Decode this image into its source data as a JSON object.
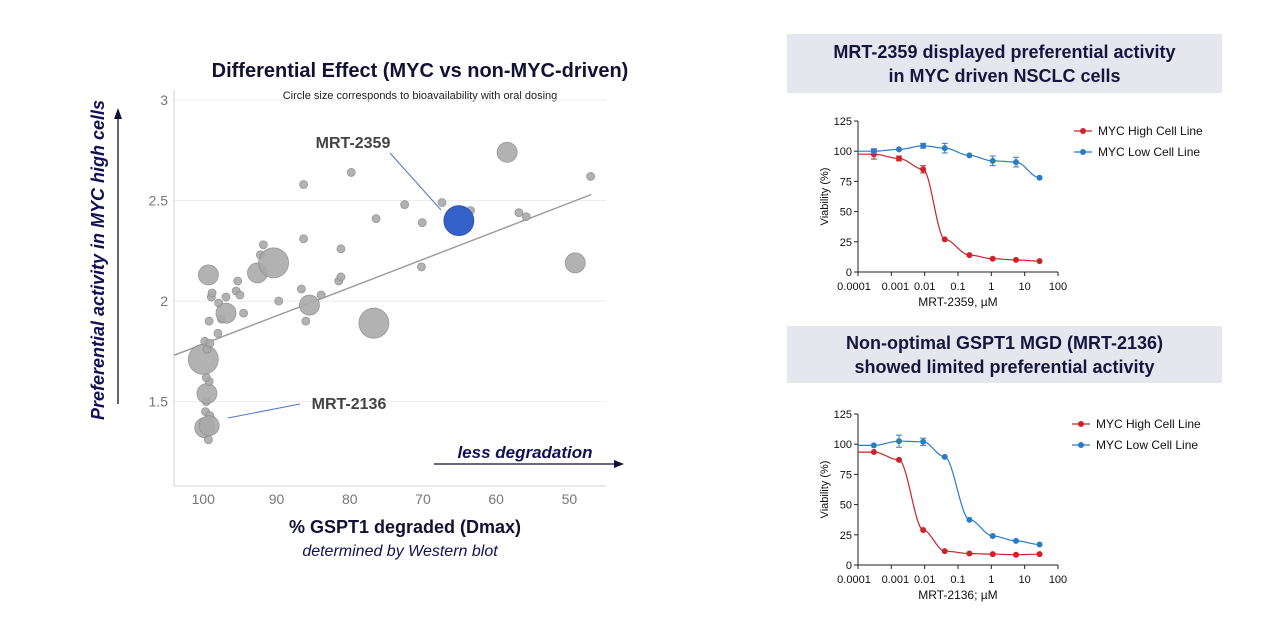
{
  "main_chart": {
    "title": "Differential Effect (MYC vs non-MYC-driven)",
    "subtitle": "Circle size corresponds to bioavailability with oral dosing",
    "ylabel": "Preferential activity in MYC high cells",
    "xlabel": "% GSPT1 degraded (Dmax)",
    "xlabel_sub": "determined by Western blot",
    "arrow_label": "less degradation",
    "callout_1": "MRT-2359",
    "callout_2": "MRT-2136",
    "colors": {
      "bubble": "#aaaaaa",
      "highlight": "#3461c8",
      "trend": "#999999"
    }
  },
  "box_1": {
    "line1": "MRT-2359 displayed preferential activity",
    "line2": "in MYC driven NSCLC cells"
  },
  "box_2": {
    "line1": "Non-optimal GSPT1 MGD (MRT-2136)",
    "line2": "showed limited preferential activity"
  },
  "chart_data": [
    {
      "type": "scatter",
      "title": "Differential Effect (MYC vs non-MYC-driven)",
      "subtitle": "Circle size corresponds to bioavailability with oral dosing",
      "xlabel": "% GSPT1 degraded (Dmax)",
      "ylabel": "Preferential activity in MYC high cells",
      "x_reversed": true,
      "xlim": [
        104,
        45
      ],
      "ylim": [
        1.08,
        3.05
      ],
      "xticks": [
        100,
        90,
        80,
        70,
        60,
        50
      ],
      "yticks": [
        1.5,
        2,
        2.5,
        3
      ],
      "grid": true,
      "trendline": {
        "x": [
          104,
          47
        ],
        "y": [
          1.73,
          2.53
        ]
      },
      "points": [
        {
          "x": 99.8,
          "y": 1.37,
          "size": 2
        },
        {
          "x": 99.3,
          "y": 1.31,
          "size": 1
        },
        {
          "x": 99.7,
          "y": 1.45,
          "size": 1
        },
        {
          "x": 99.1,
          "y": 1.43,
          "size": 1
        },
        {
          "x": 99.2,
          "y": 1.38,
          "size": 2
        },
        {
          "x": 99.6,
          "y": 1.5,
          "size": 1
        },
        {
          "x": 99.5,
          "y": 1.54,
          "size": 2
        },
        {
          "x": 99.2,
          "y": 1.6,
          "size": 1
        },
        {
          "x": 99.6,
          "y": 1.62,
          "size": 1
        },
        {
          "x": 100.0,
          "y": 1.71,
          "size": 3
        },
        {
          "x": 99.5,
          "y": 1.76,
          "size": 1
        },
        {
          "x": 99.8,
          "y": 1.8,
          "size": 1
        },
        {
          "x": 99.1,
          "y": 1.79,
          "size": 1
        },
        {
          "x": 98.0,
          "y": 1.84,
          "size": 1
        },
        {
          "x": 99.2,
          "y": 1.9,
          "size": 1
        },
        {
          "x": 97.5,
          "y": 1.91,
          "size": 1
        },
        {
          "x": 98.9,
          "y": 2.02,
          "size": 1
        },
        {
          "x": 98.8,
          "y": 2.04,
          "size": 1
        },
        {
          "x": 97.9,
          "y": 1.99,
          "size": 1
        },
        {
          "x": 99.3,
          "y": 2.13,
          "size": 2
        },
        {
          "x": 96.9,
          "y": 2.02,
          "size": 1
        },
        {
          "x": 95.5,
          "y": 2.05,
          "size": 1
        },
        {
          "x": 95.0,
          "y": 2.03,
          "size": 1
        },
        {
          "x": 96.9,
          "y": 1.94,
          "size": 2
        },
        {
          "x": 95.3,
          "y": 2.1,
          "size": 1
        },
        {
          "x": 94.5,
          "y": 1.94,
          "size": 1
        },
        {
          "x": 92.6,
          "y": 2.14,
          "size": 2
        },
        {
          "x": 92.2,
          "y": 2.23,
          "size": 1
        },
        {
          "x": 91.8,
          "y": 2.28,
          "size": 1
        },
        {
          "x": 90.4,
          "y": 2.19,
          "size": 3
        },
        {
          "x": 89.7,
          "y": 2.0,
          "size": 1
        },
        {
          "x": 86.6,
          "y": 2.06,
          "size": 1
        },
        {
          "x": 85.5,
          "y": 1.98,
          "size": 2
        },
        {
          "x": 83.9,
          "y": 2.03,
          "size": 1
        },
        {
          "x": 86.0,
          "y": 1.9,
          "size": 1
        },
        {
          "x": 81.5,
          "y": 2.1,
          "size": 1
        },
        {
          "x": 81.2,
          "y": 2.12,
          "size": 1
        },
        {
          "x": 81.2,
          "y": 2.26,
          "size": 1
        },
        {
          "x": 79.8,
          "y": 2.64,
          "size": 1
        },
        {
          "x": 76.7,
          "y": 1.89,
          "size": 3
        },
        {
          "x": 76.4,
          "y": 2.41,
          "size": 1
        },
        {
          "x": 72.5,
          "y": 2.48,
          "size": 1
        },
        {
          "x": 70.1,
          "y": 2.39,
          "size": 1
        },
        {
          "x": 70.2,
          "y": 2.17,
          "size": 1
        },
        {
          "x": 67.4,
          "y": 2.49,
          "size": 1
        },
        {
          "x": 63.5,
          "y": 2.45,
          "size": 1
        },
        {
          "x": 58.5,
          "y": 2.74,
          "size": 2
        },
        {
          "x": 56.9,
          "y": 2.44,
          "size": 1
        },
        {
          "x": 55.9,
          "y": 2.42,
          "size": 1
        },
        {
          "x": 86.3,
          "y": 2.58,
          "size": 1
        },
        {
          "x": 86.3,
          "y": 2.31,
          "size": 1
        },
        {
          "x": 49.2,
          "y": 2.19,
          "size": 2
        },
        {
          "x": 47.1,
          "y": 2.62,
          "size": 1
        },
        {
          "x": 65.1,
          "y": 2.4,
          "size": 2,
          "highlight": true,
          "label": "MRT-2359"
        }
      ],
      "annotations": [
        "MRT-2359",
        "MRT-2136",
        "less degradation"
      ]
    },
    {
      "type": "line",
      "title": "MRT-2359 displayed preferential activity in MYC driven NSCLC cells",
      "xlabel": "MRT-2359, µM",
      "ylabel": "Viability (%)",
      "xscale": "log",
      "xlim": [
        0.0001,
        100
      ],
      "ylim": [
        0,
        125
      ],
      "xticks": [
        "0.0001",
        "0.001",
        "0.01",
        "0.1",
        "1",
        "10",
        "100"
      ],
      "yticks": [
        0,
        25,
        50,
        75,
        100,
        125
      ],
      "legend": "right",
      "series": [
        {
          "name": "MYC High Cell Line",
          "color": "#cc2229",
          "x": [
            0.0003,
            0.0017,
            0.009,
            0.04,
            0.22,
            1.1,
            5.5,
            28
          ],
          "y": [
            97.5,
            94,
            85,
            27,
            14,
            11,
            10,
            9
          ],
          "err": [
            4,
            2,
            3,
            1,
            1,
            1,
            1,
            1
          ]
        },
        {
          "name": "MYC Low Cell Line",
          "color": "#2a7cc6",
          "x": [
            0.0003,
            0.0017,
            0.009,
            0.04,
            0.22,
            1.1,
            5.5,
            28
          ],
          "y": [
            100,
            101.5,
            104.5,
            102.5,
            96.5,
            92,
            91,
            78
          ],
          "err": [
            2,
            1,
            2,
            4,
            1,
            4,
            4,
            1
          ]
        }
      ]
    },
    {
      "type": "line",
      "title": "Non-optimal GSPT1 MGD (MRT-2136) showed limited preferential activity",
      "xlabel": "MRT-2136; µM",
      "ylabel": "Viability (%)",
      "xscale": "log",
      "xlim": [
        0.0001,
        100
      ],
      "ylim": [
        0,
        125
      ],
      "xticks": [
        "0.0001",
        "0.001",
        "0.01",
        "0.1",
        "1",
        "10",
        "100"
      ],
      "yticks": [
        0,
        25,
        50,
        75,
        100,
        125
      ],
      "legend": "right",
      "series": [
        {
          "name": "MYC High Cell Line",
          "color": "#cc2229",
          "x": [
            0.0003,
            0.0017,
            0.009,
            0.04,
            0.22,
            1.1,
            5.5,
            28
          ],
          "y": [
            93.5,
            87,
            29,
            11.5,
            9.5,
            9,
            8.5,
            9
          ],
          "err": [
            1,
            1,
            1,
            1,
            1,
            1,
            1,
            1
          ]
        },
        {
          "name": "MYC Low Cell Line",
          "color": "#2a7cc6",
          "x": [
            0.0003,
            0.0017,
            0.009,
            0.04,
            0.22,
            1.1,
            5.5,
            28
          ],
          "y": [
            99,
            102.5,
            102,
            89.5,
            37.5,
            24,
            20,
            17
          ],
          "err": [
            1,
            5,
            3,
            1,
            1,
            1,
            1,
            1
          ]
        }
      ]
    }
  ]
}
